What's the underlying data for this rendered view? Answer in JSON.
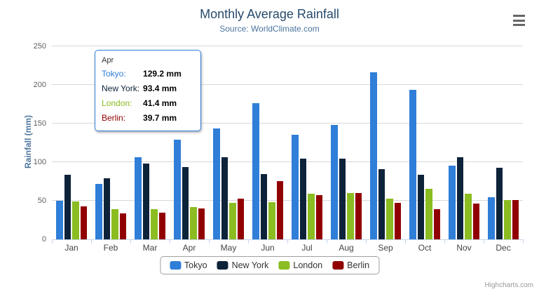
{
  "chart": {
    "title": "Monthly Average Rainfall",
    "subtitle": "Source: WorldClimate.com",
    "yaxis_title": "Rainfall (mm)",
    "credits": "Highcharts.com"
  },
  "chart_data": {
    "type": "bar",
    "title": "Monthly Average Rainfall",
    "subtitle": "Source: WorldClimate.com",
    "categories": [
      "Jan",
      "Feb",
      "Mar",
      "Apr",
      "May",
      "Jun",
      "Jul",
      "Aug",
      "Sep",
      "Oct",
      "Nov",
      "Dec"
    ],
    "series": [
      {
        "name": "Tokyo",
        "color": "#2f7ed8",
        "values": [
          49.9,
          71.5,
          106.4,
          129.2,
          144.0,
          176.0,
          135.6,
          148.5,
          216.4,
          194.1,
          95.6,
          54.4
        ]
      },
      {
        "name": "New York",
        "color": "#0d233a",
        "values": [
          83.6,
          78.8,
          98.5,
          93.4,
          106.0,
          84.5,
          105.0,
          104.3,
          91.2,
          83.5,
          106.6,
          92.3
        ]
      },
      {
        "name": "London",
        "color": "#8bbc21",
        "values": [
          48.9,
          38.8,
          39.3,
          41.4,
          47.0,
          48.3,
          59.0,
          59.6,
          52.4,
          65.2,
          59.3,
          51.2
        ]
      },
      {
        "name": "Berlin",
        "color": "#910000",
        "values": [
          42.4,
          33.2,
          34.5,
          39.7,
          52.6,
          75.5,
          57.4,
          60.4,
          47.6,
          39.1,
          46.8,
          51.1
        ]
      }
    ],
    "xlabel": "",
    "ylabel": "Rainfall (mm)",
    "ylim": [
      0,
      250
    ],
    "yticks": [
      0,
      50,
      100,
      150,
      200,
      250
    ],
    "grid": true,
    "legend_position": "bottom"
  },
  "tooltip": {
    "header": "Apr",
    "rows": [
      {
        "label": "Tokyo:",
        "value": "129.2 mm",
        "color": "#2f7ed8"
      },
      {
        "label": "New York:",
        "value": "93.4 mm",
        "color": "#0d233a"
      },
      {
        "label": "London:",
        "value": "41.4 mm",
        "color": "#8bbc21"
      },
      {
        "label": "Berlin:",
        "value": "39.7 mm",
        "color": "#910000"
      }
    ]
  },
  "legend": {
    "items": [
      {
        "label": "Tokyo",
        "color": "#2f7ed8"
      },
      {
        "label": "New York",
        "color": "#0d233a"
      },
      {
        "label": "London",
        "color": "#8bbc21"
      },
      {
        "label": "Berlin",
        "color": "#910000"
      }
    ]
  }
}
